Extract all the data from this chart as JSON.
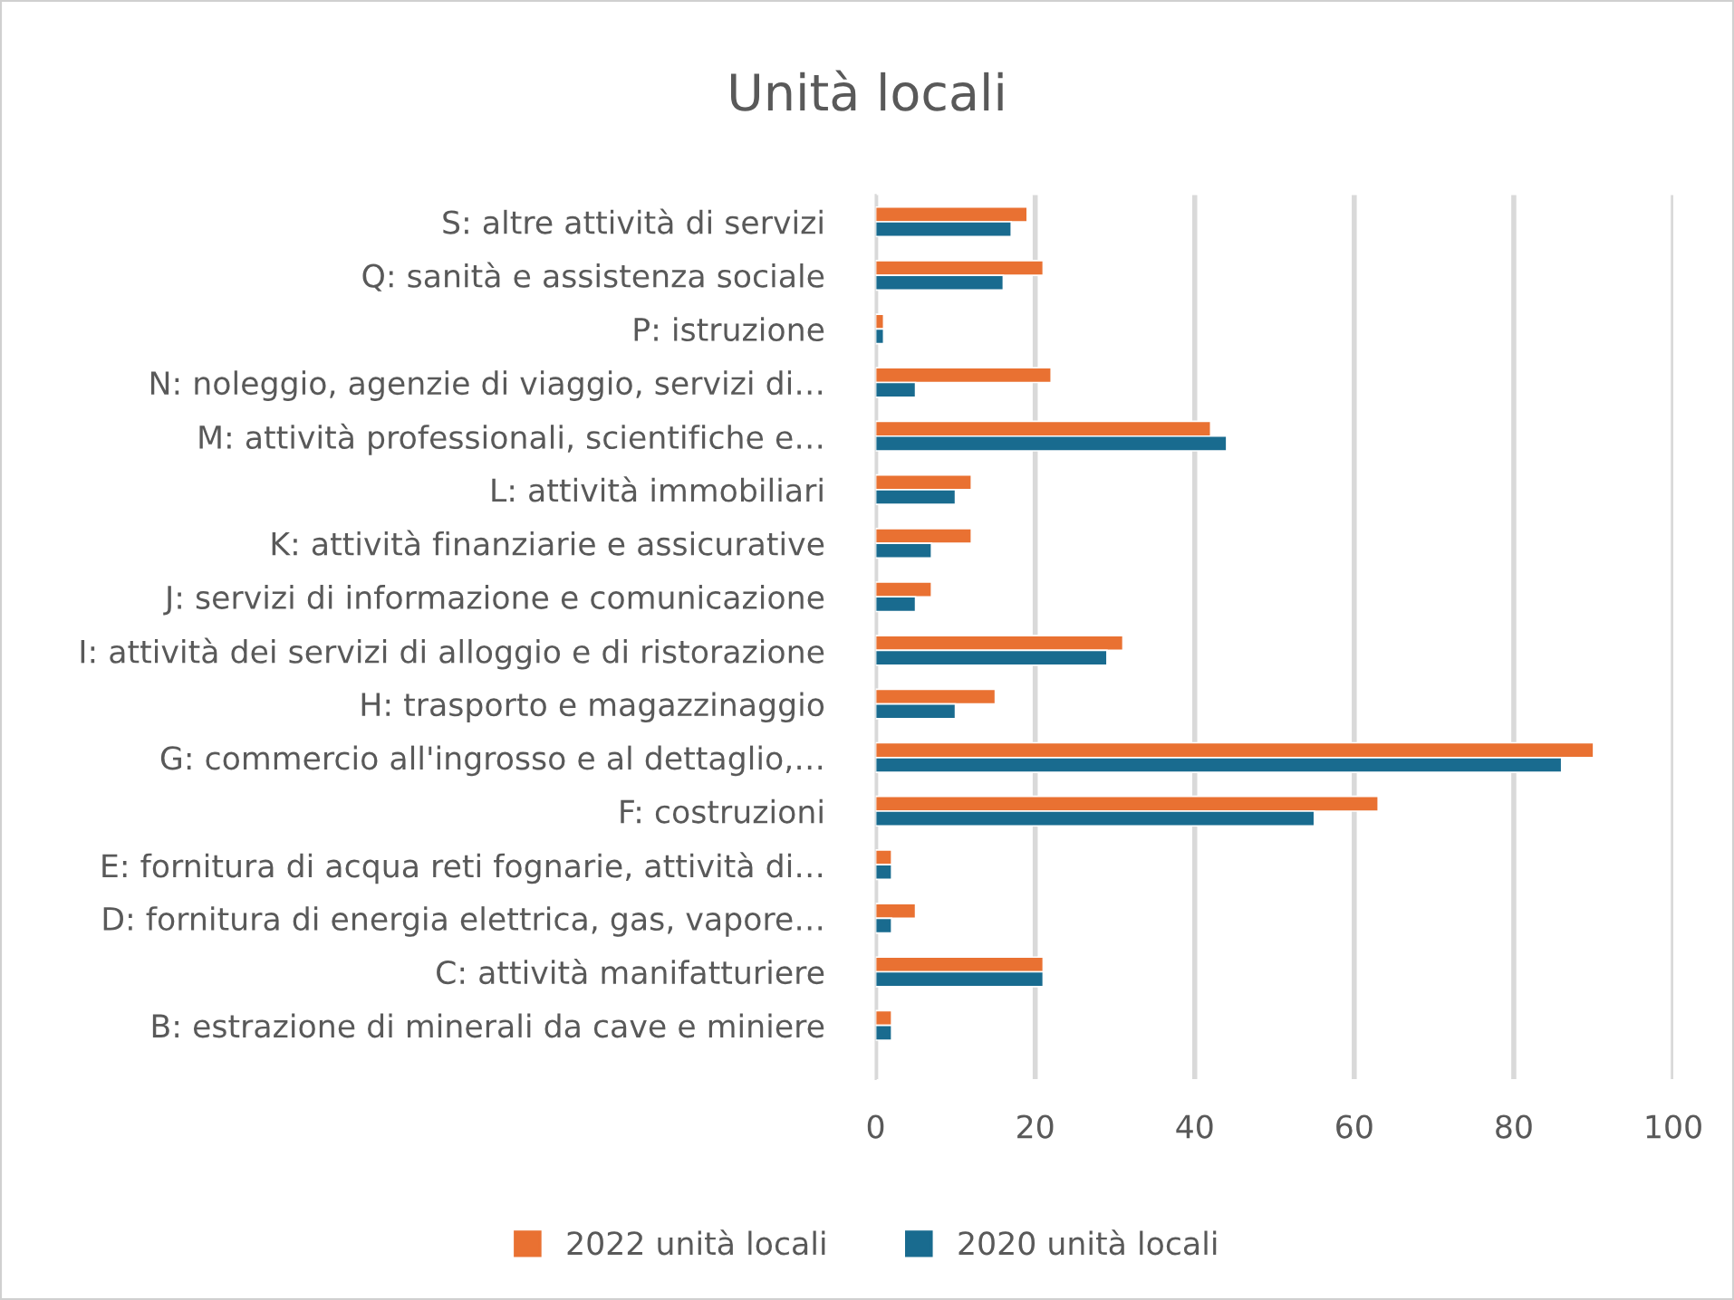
{
  "chart_data": {
    "type": "bar",
    "orientation": "horizontal",
    "title": "Unità locali",
    "categories": [
      "S: altre attività di servizi",
      "Q: sanità e assistenza sociale",
      "P: istruzione",
      "N: noleggio, agenzie di viaggio, servizi di…",
      "M: attività professionali, scientifiche e…",
      "L: attività immobiliari",
      "K: attività finanziarie e assicurative",
      "J: servizi di informazione e comunicazione",
      "I: attività dei servizi di alloggio e di ristorazione",
      "H: trasporto e magazzinaggio",
      "G: commercio all'ingrosso e al dettaglio,…",
      "F: costruzioni",
      "E: fornitura di acqua reti fognarie, attività di…",
      "D: fornitura di energia elettrica, gas, vapore…",
      "C: attività manifatturiere",
      "B: estrazione di minerali da cave e miniere"
    ],
    "series": [
      {
        "name": "2022 unità locali",
        "color": "#e97132",
        "values": [
          19,
          21,
          1,
          22,
          42,
          12,
          12,
          7,
          31,
          15,
          90,
          63,
          2,
          5,
          21,
          2
        ]
      },
      {
        "name": "2020 unità locali",
        "color": "#196b8f",
        "values": [
          17,
          16,
          1,
          5,
          44,
          10,
          7,
          5,
          29,
          10,
          86,
          55,
          2,
          2,
          21,
          2
        ]
      }
    ],
    "xlim": [
      0,
      100
    ],
    "xticks": [
      0,
      20,
      40,
      60,
      80,
      100
    ],
    "grid": "x",
    "legend": "bottom"
  }
}
